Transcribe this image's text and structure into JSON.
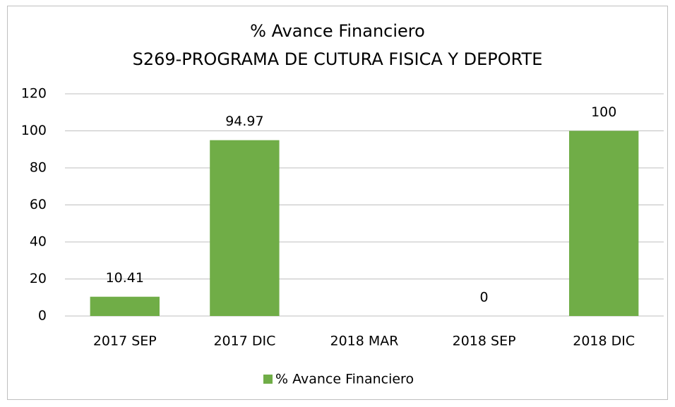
{
  "chart_data": {
    "type": "bar",
    "title": "% Avance Financiero",
    "subtitle": "S269-PROGRAMA DE CUTURA FISICA Y DEPORTE",
    "categories": [
      "2017 SEP",
      "2017 DIC",
      "2018 MAR",
      "2018 SEP",
      "2018 DIC"
    ],
    "series": [
      {
        "name": "% Avance Financiero",
        "color": "#70ad47",
        "values": [
          10.41,
          94.97,
          null,
          0,
          100
        ]
      }
    ],
    "ylim": [
      0,
      120
    ],
    "yticks": [
      0,
      20,
      40,
      60,
      80,
      100,
      120
    ],
    "grid": true,
    "legend": "bottom"
  }
}
